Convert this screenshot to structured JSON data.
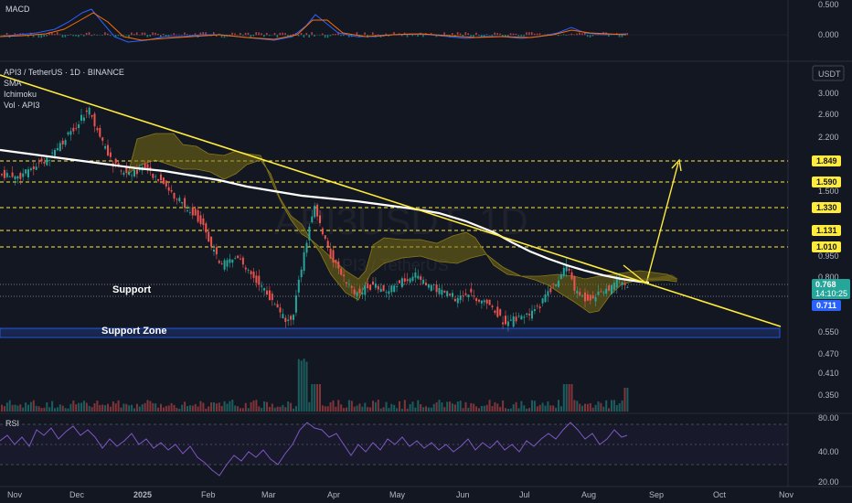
{
  "header": {
    "pair": "API3 / TetherUS · 1D · BINANCE",
    "indicators": [
      "SMA",
      "Ichimoku",
      "Vol · API3"
    ],
    "currency": "USDT",
    "watermark": "API3USDT, 1D",
    "watermark_sub": "API3 / TetherUS"
  },
  "panes": {
    "macd_label": "MACD",
    "rsi_label": "RSI"
  },
  "chart_data": {
    "type": "candlestick",
    "x_ticks": [
      "Nov",
      "Dec",
      "2025",
      "Feb",
      "Mar",
      "Apr",
      "May",
      "Jun",
      "Jul",
      "Aug",
      "Sep",
      "Oct",
      "Nov"
    ],
    "y_ticks": [
      "3.000",
      "2.600",
      "2.200",
      "1.500",
      "0.950",
      "0.800",
      "0.550",
      "0.470",
      "0.410",
      "0.350"
    ],
    "macd_ticks": [
      "0.500",
      "0.000"
    ],
    "rsi_ticks": [
      "80.00",
      "40.00",
      "20.00"
    ],
    "resistance_levels": [
      {
        "value": "1.849",
        "color": "#ffeb3b"
      },
      {
        "value": "1.590",
        "color": "#ffeb3b"
      },
      {
        "value": "1.330",
        "color": "#ffeb3b"
      },
      {
        "value": "1.131",
        "color": "#ffeb3b"
      },
      {
        "value": "1.010",
        "color": "#ffeb3b"
      }
    ],
    "current_price": {
      "value": "0.768",
      "countdown": "14:10:25",
      "color": "#26a69a"
    },
    "support_price": {
      "value": "0.711",
      "color": "#2962ff"
    },
    "annotations": [
      "Support",
      "Support Zone"
    ],
    "colors": {
      "up": "#26a69a",
      "down": "#ef5350",
      "trendline": "#ffeb3b",
      "sma": "#ffffff",
      "cloud": "#8a7a1a",
      "rsi": "#7e57c2"
    }
  }
}
